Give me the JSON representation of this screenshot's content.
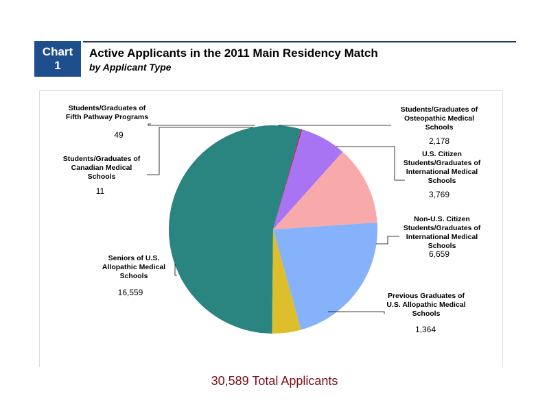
{
  "badge": {
    "line1": "Chart",
    "line2": "1"
  },
  "header": {
    "title": "Active Applicants in the 2011 Main Residency Match",
    "subtitle": "by Applicant Type"
  },
  "total_label": "30,589 Total Applicants",
  "chart_data": {
    "type": "pie",
    "title": "Active Applicants in the 2011 Main Residency Match",
    "subtitle": "by Applicant Type",
    "slices": [
      {
        "label": "Seniors of U.S. Allopathic Medical Schools",
        "value": 16559,
        "value_label": "16,559",
        "color": "#2a8480"
      },
      {
        "label": "Students/Graduates of Canadian Medical Schools",
        "value": 11,
        "value_label": "11",
        "color": "#4a2a8a"
      },
      {
        "label": "Students/Graduates of Fifth Pathway Programs",
        "value": 49,
        "value_label": "49",
        "color": "#c0143c"
      },
      {
        "label": "Students/Graduates of Osteopathic Medical Schools",
        "value": 2178,
        "value_label": "2,178",
        "color": "#a874f4"
      },
      {
        "label": "U.S. Citizen Students/Graduates of International Medical Schools",
        "value": 3769,
        "value_label": "3,769",
        "color": "#f8a9aa"
      },
      {
        "label": "Non-U.S. Citizen Students/Graduates of International Medical Schools",
        "value": 6659,
        "value_label": "6,659",
        "color": "#86b2fc"
      },
      {
        "label": "Previous Graduates of U.S. Allopathic Medical Schools",
        "value": 1364,
        "value_label": "1,364",
        "color": "#dcbf2a"
      }
    ],
    "total": 30589,
    "total_label": "30,589 Total Applicants"
  }
}
